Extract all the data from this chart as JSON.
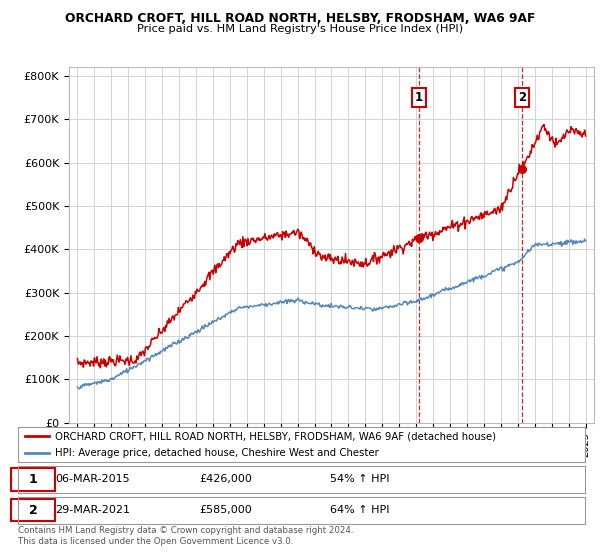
{
  "title1": "ORCHARD CROFT, HILL ROAD NORTH, HELSBY, FRODSHAM, WA6 9AF",
  "title2": "Price paid vs. HM Land Registry's House Price Index (HPI)",
  "ylabel_ticks": [
    "£0",
    "£100K",
    "£200K",
    "£300K",
    "£400K",
    "£500K",
    "£600K",
    "£700K",
    "£800K"
  ],
  "ytick_vals": [
    0,
    100000,
    200000,
    300000,
    400000,
    500000,
    600000,
    700000,
    800000
  ],
  "ylim": [
    0,
    820000
  ],
  "sale1_year": 2015.18,
  "sale1_price": 426000,
  "sale2_year": 2021.24,
  "sale2_price": 585000,
  "red_color": "#cc0000",
  "blue_color": "#5588bb",
  "legend_red_label": "ORCHARD CROFT, HILL ROAD NORTH, HELSBY, FRODSHAM, WA6 9AF (detached house)",
  "legend_blue_label": "HPI: Average price, detached house, Cheshire West and Chester",
  "table_row1": [
    "1",
    "06-MAR-2015",
    "£426,000",
    "54% ↑ HPI"
  ],
  "table_row2": [
    "2",
    "29-MAR-2021",
    "£585,000",
    "64% ↑ HPI"
  ],
  "footer": "Contains HM Land Registry data © Crown copyright and database right 2024.\nThis data is licensed under the Open Government Licence v3.0.",
  "bg_color": "#ffffff",
  "grid_color": "#cccccc"
}
